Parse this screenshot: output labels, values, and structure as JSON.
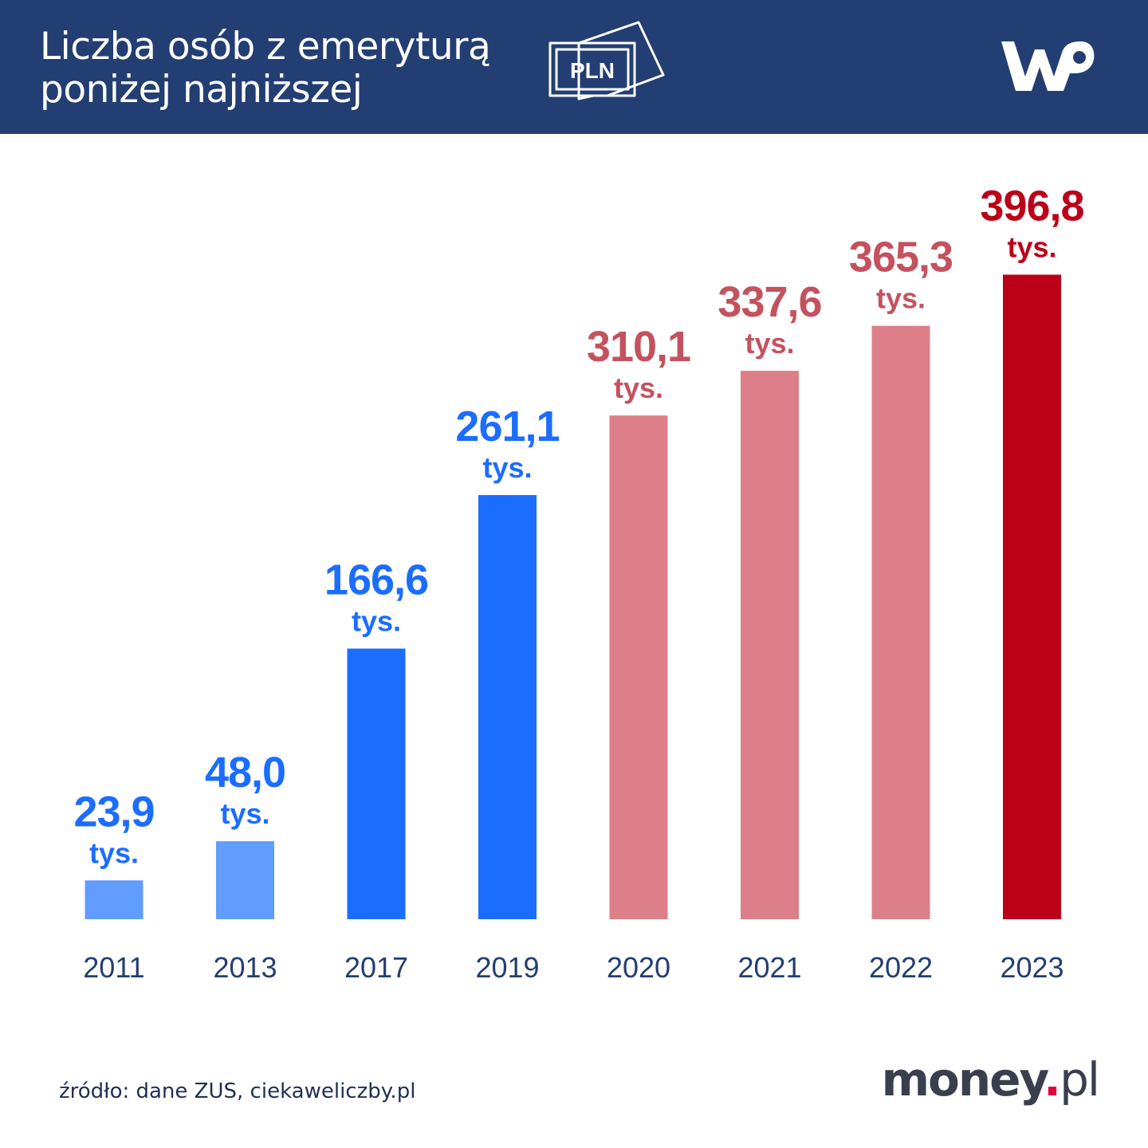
{
  "header": {
    "title_line1": "Liczba osób z emeryturą",
    "title_line2": "poniżej najniższej",
    "pln_label": "PLN",
    "logo_text": "WP",
    "background": "#233e72"
  },
  "chart_data": {
    "type": "bar",
    "title": "Liczba osób z emeryturą poniżej najniższej",
    "categories": [
      "2011",
      "2013",
      "2017",
      "2019",
      "2020",
      "2021",
      "2022",
      "2023"
    ],
    "values": [
      23.9,
      48.0,
      166.6,
      261.1,
      310.1,
      337.6,
      365.3,
      396.8
    ],
    "value_labels": [
      "23,9",
      "48,0",
      "166,6",
      "261,1",
      "310,1",
      "337,6",
      "365,3",
      "396,8"
    ],
    "unit": "tys.",
    "bar_colors": [
      "#619cff",
      "#619cff",
      "#1b6dff",
      "#1b6dff",
      "#dc7f89",
      "#dc7f89",
      "#dc7f89",
      "#bb0018"
    ],
    "label_colors": [
      "#1b6dff",
      "#1b6dff",
      "#1b6dff",
      "#1b6dff",
      "#c4525e",
      "#c4525e",
      "#c4525e",
      "#bb0018"
    ],
    "xlabel": "",
    "ylabel": "",
    "ylim": [
      0,
      400
    ],
    "grid": false,
    "legend": "none"
  },
  "footer": {
    "source": "źródło: dane ZUS, ciekaweliczby.pl",
    "brand_name": "money",
    "brand_dot": ".",
    "brand_tld": "pl",
    "brand_dot_color": "#e4003a"
  }
}
